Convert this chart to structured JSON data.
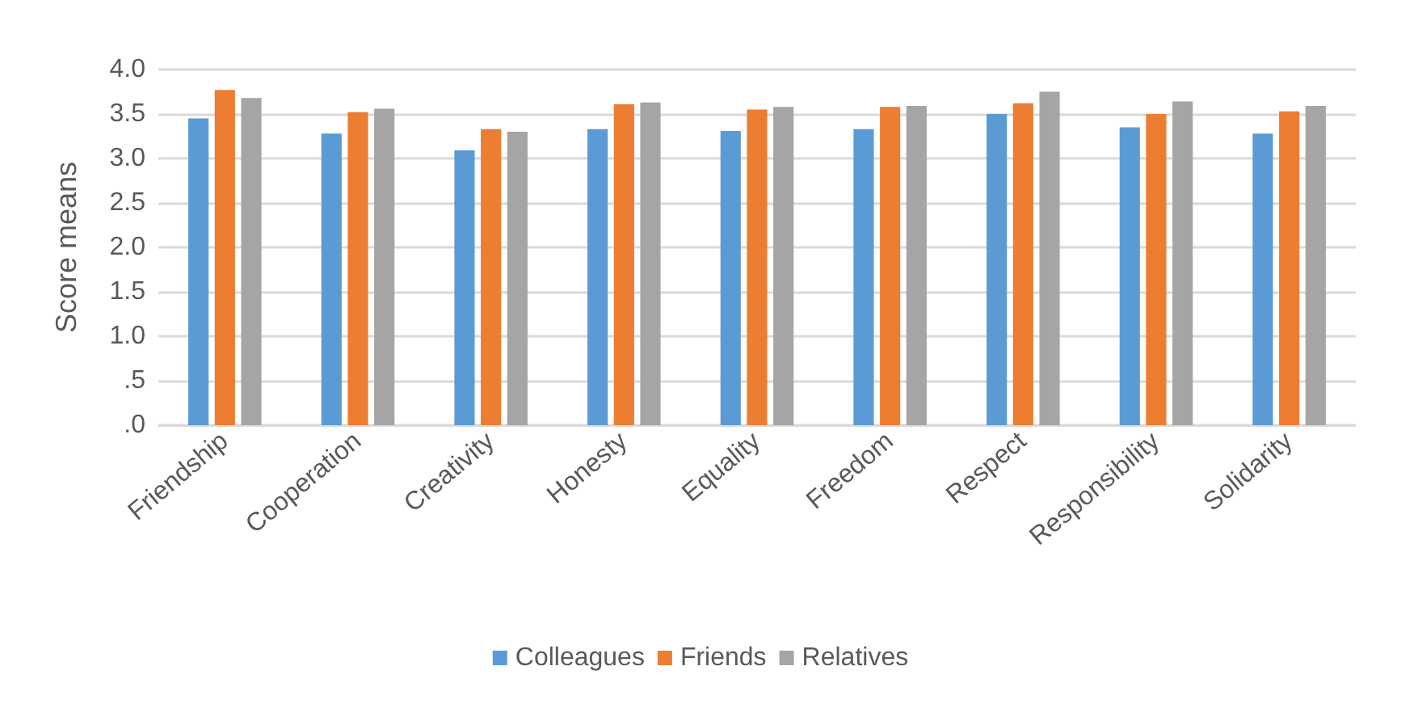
{
  "chart_data": {
    "type": "bar",
    "ylabel": "Score means",
    "categories": [
      "Friendship",
      "Cooperation",
      "Creativity",
      "Honesty",
      "Equality",
      "Freedom",
      "Respect",
      "Responsibility",
      "Solidarity"
    ],
    "series": [
      {
        "name": "Colleagues",
        "color": "#5b9bd5",
        "values": [
          3.45,
          3.28,
          3.09,
          3.33,
          3.31,
          3.33,
          3.5,
          3.35,
          3.28
        ]
      },
      {
        "name": "Friends",
        "color": "#ed7d31",
        "values": [
          3.77,
          3.52,
          3.33,
          3.61,
          3.55,
          3.58,
          3.62,
          3.5,
          3.53
        ]
      },
      {
        "name": "Relatives",
        "color": "#a5a5a5",
        "values": [
          3.68,
          3.56,
          3.3,
          3.63,
          3.58,
          3.59,
          3.75,
          3.64,
          3.59
        ]
      }
    ],
    "ylim": [
      0,
      4
    ],
    "yticks": [
      {
        "value": 0,
        "label": ".0"
      },
      {
        "value": 0.5,
        "label": ".5"
      },
      {
        "value": 1,
        "label": "1.0"
      },
      {
        "value": 1.5,
        "label": "1.5"
      },
      {
        "value": 2,
        "label": "2.0"
      },
      {
        "value": 2.5,
        "label": "2.5"
      },
      {
        "value": 3,
        "label": "3.0"
      },
      {
        "value": 3.5,
        "label": "3.5"
      },
      {
        "value": 4,
        "label": "4.0"
      }
    ],
    "grid": "y",
    "legend": "bottom"
  }
}
